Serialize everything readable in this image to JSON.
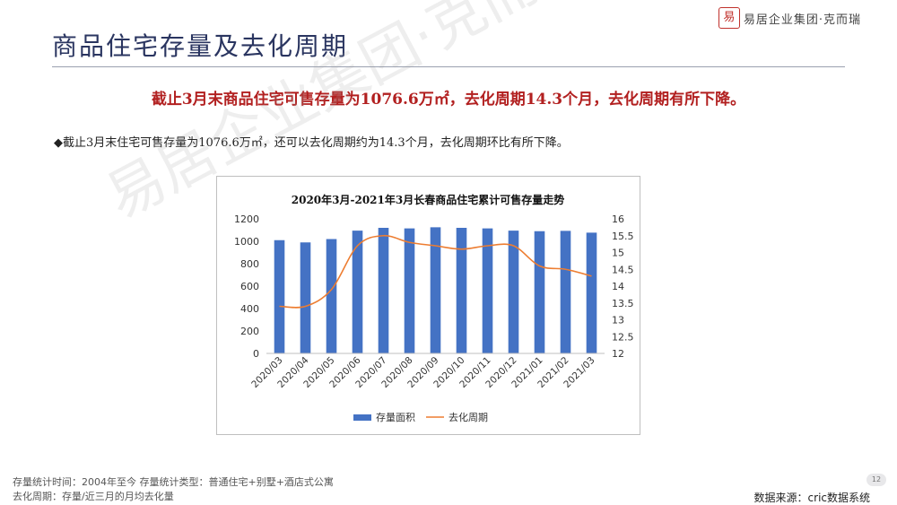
{
  "brand": {
    "logo_char": "易",
    "text": "易居企业集团·克而瑞"
  },
  "page_title": "商品住宅存量及去化周期",
  "headline": "截止3月末商品住宅可售存量为1076.6万㎡，去化周期14.3个月，去化周期有所下降。",
  "bullet": "◆截止3月末住宅可售存量为1076.6万㎡，还可以去化周期约为14.3个月，去化周期环比有所下降。",
  "chart_data": {
    "type": "bar",
    "title": "2020年3月-2021年3月长春商品住宅累计可售存量走势",
    "categories": [
      "2020/03",
      "2020/04",
      "2020/05",
      "2020/06",
      "2020/07",
      "2020/08",
      "2020/09",
      "2020/10",
      "2020/11",
      "2020/12",
      "2021/01",
      "2021/02",
      "2021/03"
    ],
    "series": [
      {
        "name": "存量面积",
        "type": "bar",
        "axis": "left",
        "color": "#4472c4",
        "values": [
          1010,
          990,
          1020,
          1095,
          1120,
          1115,
          1125,
          1120,
          1115,
          1095,
          1090,
          1093,
          1077
        ]
      },
      {
        "name": "去化周期",
        "type": "line",
        "axis": "right",
        "color": "#ed7d31",
        "values": [
          13.4,
          13.4,
          13.9,
          15.2,
          15.5,
          15.3,
          15.2,
          15.1,
          15.2,
          15.2,
          14.6,
          14.5,
          14.3
        ]
      }
    ],
    "y_left": {
      "min": 0,
      "max": 1200,
      "ticks": [
        "0",
        "200",
        "400",
        "600",
        "800",
        "1000",
        "1200"
      ]
    },
    "y_right": {
      "min": 12,
      "max": 16,
      "ticks": [
        "12",
        "12.5",
        "13",
        "13.5",
        "14",
        "14.5",
        "15",
        "15.5",
        "16"
      ]
    },
    "legend_position": "bottom"
  },
  "footer": {
    "line1": "存量统计时间：2004年至今    存量统计类型：普通住宅+别墅+酒店式公寓",
    "line2": "去化周期：存量/近三月的月均去化量"
  },
  "source": "数据来源：cric数据系统",
  "page_number": "12",
  "watermark": "易居企业集团·克而瑞"
}
